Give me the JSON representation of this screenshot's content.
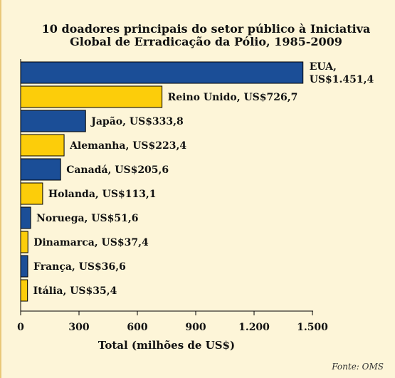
{
  "chart_data": {
    "type": "bar",
    "orientation": "horizontal",
    "title_lines": [
      "10 doadores principais do setor público à Iniciativa",
      "Global de Erradicação da Pólio, 1985-2009"
    ],
    "xlabel": "Total (milhões de US$)",
    "ylabel": "",
    "xlim": [
      0,
      1500
    ],
    "xticks": [
      0,
      300,
      600,
      900,
      1200,
      1500
    ],
    "xtick_labels": [
      "0",
      "300",
      "600",
      "900",
      "1.200",
      "1.500"
    ],
    "categories": [
      "EUA",
      "Reino Unido",
      "Japão",
      "Alemanha",
      "Canadá",
      "Holanda",
      "Noruega",
      "Dinamarca",
      "França",
      "Itália"
    ],
    "values": [
      1451.4,
      726.7,
      333.8,
      223.4,
      205.6,
      113.1,
      51.6,
      37.4,
      36.6,
      35.4
    ],
    "labels": [
      "US$1.451,4",
      "Reino Unido, US$726,7",
      "Japão, US$333,8",
      "Alemanha, US$223,4",
      "Canadá, US$205,6",
      "Holanda, US$113,1",
      "Noruega, US$51,6",
      "Dinamarca, US$37,4",
      "França, US$36,6",
      "Itália, US$35,4"
    ],
    "first_label_prefix": "EUA,",
    "grid": false,
    "legend": "none",
    "source": "Fonte: OMS"
  },
  "colors": {
    "blue": "#1b4e97",
    "yellow": "#fccd0a",
    "background": "#fdf5d8",
    "border": "#e9c878"
  }
}
